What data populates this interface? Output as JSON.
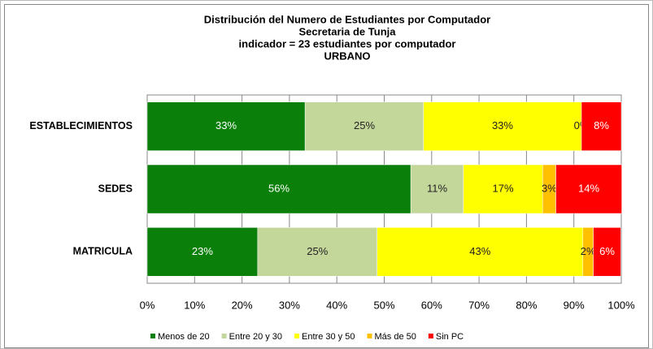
{
  "chart_data": {
    "type": "bar",
    "orientation": "horizontal",
    "stacked": true,
    "title_lines": [
      "Distribución del Numero de Estudiantes por Computador",
      "Secretaria de Tunja",
      "indicador = 23 estudiantes por computador",
      "URBANO"
    ],
    "categories": [
      "ESTABLECIMIENTOS",
      "SEDES",
      "MATRICULA"
    ],
    "series": [
      {
        "name": "Menos de 20",
        "color": "#0a7f0a",
        "values": [
          33.3,
          55.6,
          23.3
        ],
        "value_labels": [
          "33%",
          "56%",
          "23%"
        ]
      },
      {
        "name": "Entre 20 y 30",
        "color": "#c4d79b",
        "values": [
          25,
          11.1,
          25.2
        ],
        "value_labels": [
          "25%",
          "11%",
          "25%"
        ]
      },
      {
        "name": "Entre 30 y 50",
        "color": "#ffff00",
        "values": [
          33.3,
          16.7,
          43.4
        ],
        "value_labels": [
          "33%",
          "17%",
          "43%"
        ]
      },
      {
        "name": "Más de 50",
        "color": "#ffc000",
        "values": [
          0,
          2.8,
          2.2
        ],
        "value_labels": [
          "0%",
          "3%",
          "2%"
        ]
      },
      {
        "name": "Sin PC",
        "color": "#ff0000",
        "values": [
          8.4,
          13.9,
          5.8
        ],
        "value_labels": [
          "8%",
          "14%",
          "6%"
        ]
      }
    ],
    "xlim": [
      0,
      100
    ],
    "xticks": [
      {
        "value": 0,
        "label": "0%"
      },
      {
        "value": 10,
        "label": "10%"
      },
      {
        "value": 20,
        "label": "20%"
      },
      {
        "value": 30,
        "label": "30%"
      },
      {
        "value": 40,
        "label": "40%"
      },
      {
        "value": 50,
        "label": "50%"
      },
      {
        "value": 60,
        "label": "60%"
      },
      {
        "value": 70,
        "label": "70%"
      },
      {
        "value": 80,
        "label": "80%"
      },
      {
        "value": 90,
        "label": "90%"
      },
      {
        "value": 100,
        "label": "100%"
      }
    ],
    "grid": true,
    "legend": "bottom"
  }
}
